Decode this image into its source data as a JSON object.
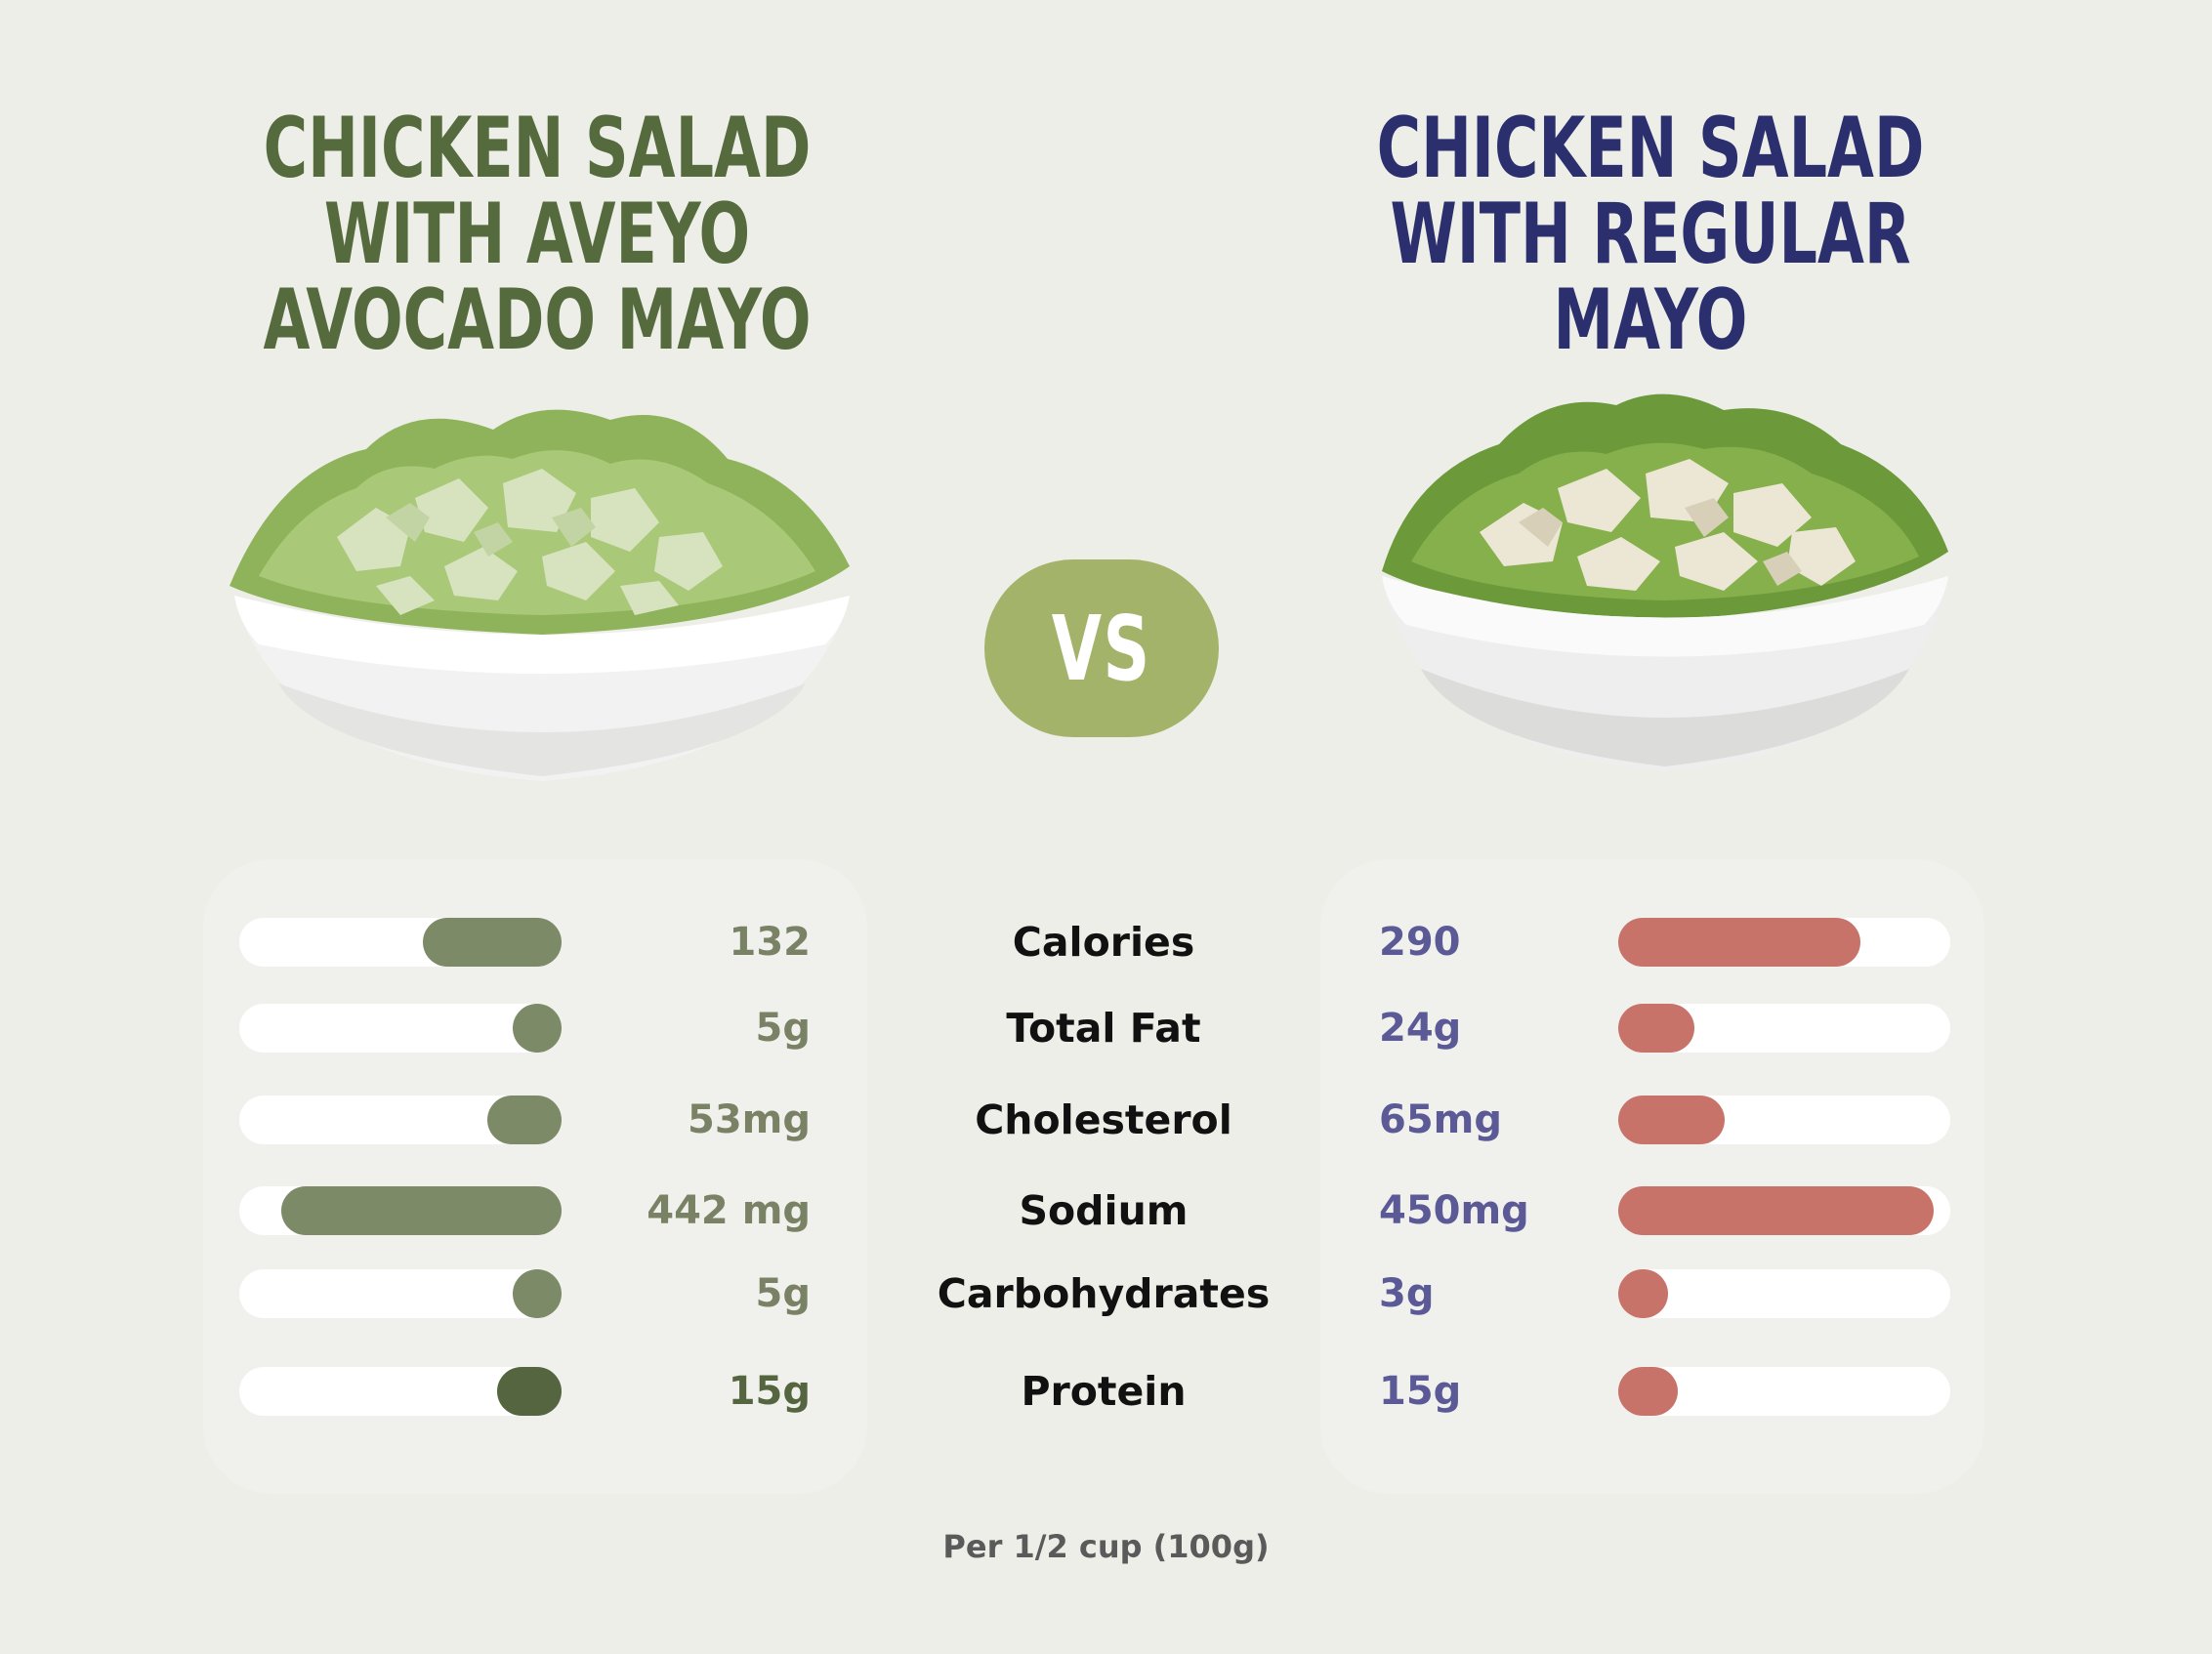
{
  "titles": {
    "left": [
      "Chicken Salad",
      "with Aveyo",
      "Avocado Mayo"
    ],
    "right": [
      "Chicken Salad",
      "with Regular",
      "Mayo"
    ]
  },
  "vs_label": "VS",
  "footnote": "Per 1/2 cup (100g)",
  "colors": {
    "left_title": "#556b3e",
    "right_title": "#2b2f6e",
    "left_bar": "#7c8a68",
    "left_bar_dark": "#556540",
    "right_bar": "#c8736a",
    "vs_badge": "#a3b46a"
  },
  "chart_data": {
    "type": "bar",
    "categories": [
      "Calories",
      "Total Fat",
      "Cholesterol",
      "Sodium",
      "Carbohydrates",
      "Protein"
    ],
    "series": [
      {
        "name": "Chicken Salad with Aveyo Avocado Mayo",
        "labels": [
          "132",
          "5g",
          "53mg",
          "442 mg",
          "5g",
          "15g"
        ],
        "values": [
          132,
          5,
          53,
          442,
          5,
          15
        ],
        "fill_fraction": [
          0.43,
          0.15,
          0.23,
          0.87,
          0.15,
          0.2
        ]
      },
      {
        "name": "Chicken Salad with Regular Mayo",
        "labels": [
          "290",
          "24g",
          "65mg",
          "450mg",
          "3g",
          "15g"
        ],
        "values": [
          290,
          24,
          65,
          450,
          3,
          15
        ],
        "fill_fraction": [
          0.73,
          0.23,
          0.32,
          0.95,
          0.15,
          0.18
        ]
      }
    ]
  }
}
